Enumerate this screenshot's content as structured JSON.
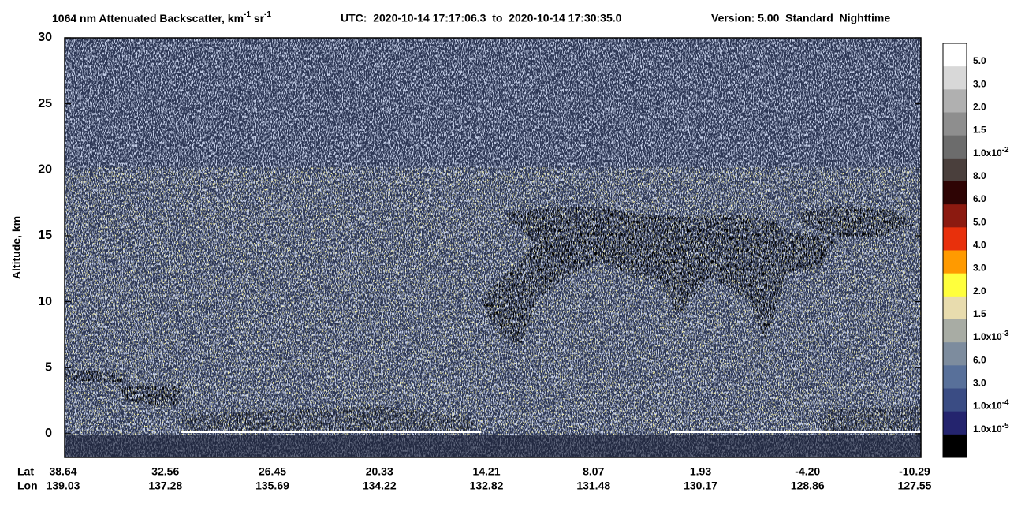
{
  "chart_data": {
    "type": "curtain",
    "title": {
      "text": "1064 nm Attenuated Backscatter, km",
      "sup1": "-1",
      "text2": " sr",
      "sup2": "-1"
    },
    "time_range": "UTC:  2020-10-14 17:17:06.3  to  2020-10-14 17:30:35.0",
    "version": "Version: 5.00  Standard  Nighttime",
    "y_label": "Altitude, km",
    "ylim": [
      -1.8,
      30
    ],
    "yticks": [
      0,
      5,
      10,
      15,
      20,
      25,
      30
    ],
    "x_rows": [
      "Lat",
      "Lon"
    ],
    "lat": [
      38.64,
      32.56,
      26.45,
      20.33,
      14.21,
      8.07,
      1.93,
      {
        "value": -4.2,
        "label": "-4.20"
      },
      -10.29
    ],
    "lon": [
      139.03,
      137.28,
      135.69,
      134.22,
      132.82,
      131.48,
      130.17,
      128.86,
      127.55
    ],
    "colorbar": {
      "colors": [
        "#ffffff",
        "#d8d8d8",
        "#b0b0b0",
        "#8e8e8e",
        "#6c6c6c",
        "#4a3f3c",
        "#2e0404",
        "#8c1a10",
        "#e8300c",
        "#ff9a00",
        "#ffff3c",
        "#e8dcae",
        "#a8aca4",
        "#7d8c9e",
        "#58709a",
        "#3a4c84",
        "#24246e",
        "#000000"
      ],
      "labels": [
        {
          "text": "5.0"
        },
        {
          "text": "3.0"
        },
        {
          "text": "2.0"
        },
        {
          "text": "1.5"
        },
        {
          "text": "1.0x10",
          "sup": "-2"
        },
        {
          "text": "8.0"
        },
        {
          "text": "6.0"
        },
        {
          "text": "5.0"
        },
        {
          "text": "4.0"
        },
        {
          "text": "3.0"
        },
        {
          "text": "2.0"
        },
        {
          "text": "1.5"
        },
        {
          "text": "1.0x10",
          "sup": "-3"
        },
        {
          "text": "6.0"
        },
        {
          "text": "3.0"
        },
        {
          "text": "1.0x10",
          "sup": "-4"
        },
        {
          "text": "1.0x10",
          "sup": "-5"
        }
      ]
    }
  }
}
